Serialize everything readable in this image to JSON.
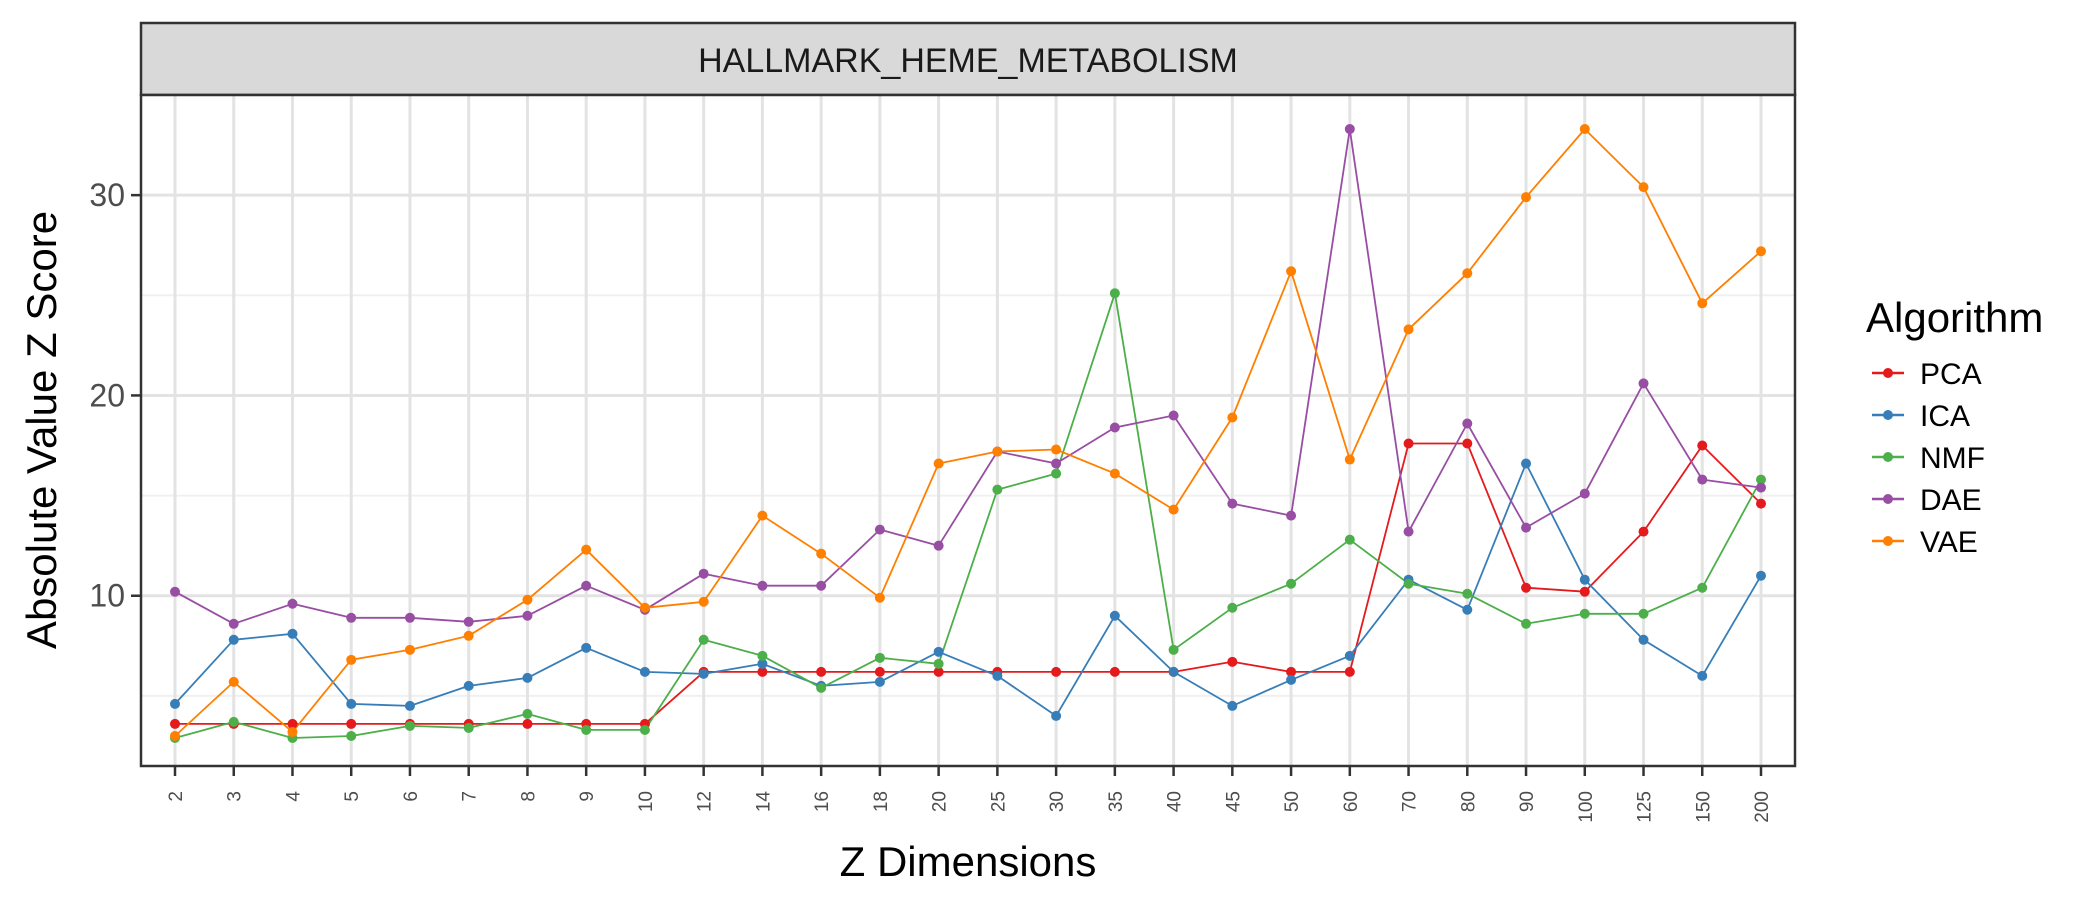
{
  "chart_data": {
    "type": "line",
    "facet_title": "HALLMARK_HEME_METABOLISM",
    "xlabel": "Z Dimensions",
    "ylabel": "Absolute Value Z Score",
    "ylim": [
      1.5,
      35
    ],
    "yticks": [
      10,
      20,
      30
    ],
    "grid": true,
    "legend": {
      "title": "Algorithm",
      "position": "right"
    },
    "categories": [
      "2",
      "3",
      "4",
      "5",
      "6",
      "7",
      "8",
      "9",
      "10",
      "12",
      "14",
      "16",
      "18",
      "20",
      "25",
      "30",
      "35",
      "40",
      "45",
      "50",
      "60",
      "70",
      "80",
      "90",
      "100",
      "125",
      "150",
      "200"
    ],
    "series": [
      {
        "name": "PCA",
        "color": "#e41a1c",
        "values": [
          3.6,
          3.6,
          3.6,
          3.6,
          3.6,
          3.6,
          3.6,
          3.6,
          3.6,
          6.2,
          6.2,
          6.2,
          6.2,
          6.2,
          6.2,
          6.2,
          6.2,
          6.2,
          6.7,
          6.2,
          6.2,
          17.6,
          17.6,
          10.4,
          10.2,
          13.2,
          17.5,
          14.6
        ]
      },
      {
        "name": "ICA",
        "color": "#377eb8",
        "values": [
          4.6,
          7.8,
          8.1,
          4.6,
          4.5,
          5.5,
          5.9,
          7.4,
          6.2,
          6.1,
          6.6,
          5.5,
          5.7,
          7.2,
          6.0,
          4.0,
          9.0,
          6.2,
          4.5,
          5.8,
          7.0,
          10.8,
          9.3,
          16.6,
          10.8,
          7.8,
          6.0,
          11.0
        ]
      },
      {
        "name": "NMF",
        "color": "#4daf4a",
        "values": [
          2.9,
          3.7,
          2.9,
          3.0,
          3.5,
          3.4,
          4.1,
          3.3,
          3.3,
          7.8,
          7.0,
          5.4,
          6.9,
          6.6,
          15.3,
          16.1,
          25.1,
          7.3,
          9.4,
          10.6,
          12.8,
          10.6,
          10.1,
          8.6,
          9.1,
          9.1,
          10.4,
          15.8
        ]
      },
      {
        "name": "DAE",
        "color": "#984ea3",
        "values": [
          10.2,
          8.6,
          9.6,
          8.9,
          8.9,
          8.7,
          9.0,
          10.5,
          9.3,
          11.1,
          10.5,
          10.5,
          13.3,
          12.5,
          17.2,
          16.6,
          18.4,
          19.0,
          14.6,
          14.0,
          33.3,
          13.2,
          18.6,
          13.4,
          15.1,
          20.6,
          15.8,
          15.4
        ]
      },
      {
        "name": "VAE",
        "color": "#ff7f00",
        "values": [
          3.0,
          5.7,
          3.2,
          6.8,
          7.3,
          8.0,
          9.8,
          12.3,
          9.4,
          9.7,
          14.0,
          12.1,
          9.9,
          16.6,
          17.2,
          17.3,
          16.1,
          14.3,
          18.9,
          26.2,
          16.8,
          23.3,
          26.1,
          29.9,
          33.3,
          30.4,
          24.6,
          27.2
        ]
      }
    ]
  }
}
